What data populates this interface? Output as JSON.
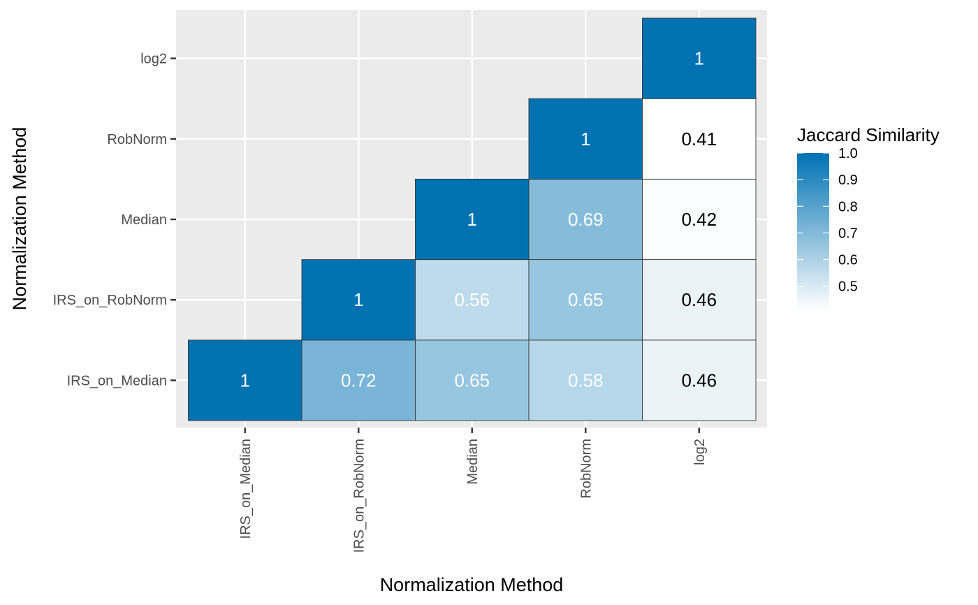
{
  "chart_data": {
    "type": "heatmap",
    "xlabel": "Normalization Method",
    "ylabel": "Normalization Method",
    "x_categories": [
      "IRS_on_Median",
      "IRS_on_RobNorm",
      "Median",
      "RobNorm",
      "log2"
    ],
    "y_categories": [
      "IRS_on_Median",
      "IRS_on_RobNorm",
      "Median",
      "RobNorm",
      "log2"
    ],
    "cells": [
      {
        "x": "IRS_on_Median",
        "y": "IRS_on_Median",
        "value": 1,
        "label": "1"
      },
      {
        "x": "IRS_on_RobNorm",
        "y": "IRS_on_Median",
        "value": 0.72,
        "label": "0.72"
      },
      {
        "x": "Median",
        "y": "IRS_on_Median",
        "value": 0.65,
        "label": "0.65"
      },
      {
        "x": "RobNorm",
        "y": "IRS_on_Median",
        "value": 0.58,
        "label": "0.58"
      },
      {
        "x": "log2",
        "y": "IRS_on_Median",
        "value": 0.46,
        "label": "0.46"
      },
      {
        "x": "IRS_on_RobNorm",
        "y": "IRS_on_RobNorm",
        "value": 1,
        "label": "1"
      },
      {
        "x": "Median",
        "y": "IRS_on_RobNorm",
        "value": 0.56,
        "label": "0.56"
      },
      {
        "x": "RobNorm",
        "y": "IRS_on_RobNorm",
        "value": 0.65,
        "label": "0.65"
      },
      {
        "x": "log2",
        "y": "IRS_on_RobNorm",
        "value": 0.46,
        "label": "0.46"
      },
      {
        "x": "Median",
        "y": "Median",
        "value": 1,
        "label": "1"
      },
      {
        "x": "RobNorm",
        "y": "Median",
        "value": 0.69,
        "label": "0.69"
      },
      {
        "x": "log2",
        "y": "Median",
        "value": 0.42,
        "label": "0.42"
      },
      {
        "x": "RobNorm",
        "y": "RobNorm",
        "value": 1,
        "label": "1"
      },
      {
        "x": "log2",
        "y": "RobNorm",
        "value": 0.41,
        "label": "0.41"
      },
      {
        "x": "log2",
        "y": "log2",
        "value": 1,
        "label": "1"
      }
    ],
    "legend": {
      "title": "Jaccard Similarity",
      "ticks": [
        "1.0",
        "0.9",
        "0.8",
        "0.7",
        "0.6",
        "0.5"
      ],
      "tick_values": [
        1.0,
        0.9,
        0.8,
        0.7,
        0.6,
        0.5
      ],
      "range": [
        0.41,
        1.0
      ],
      "placement": "right"
    },
    "colors": {
      "high": "#0072B2",
      "low": "#FFFFFF",
      "panel_background": "#EBEBEB",
      "grid": "#FFFFFF",
      "cell_border": "#333333",
      "label_light": "#FFFFFF",
      "label_dark": "#000000"
    },
    "grid": true
  }
}
